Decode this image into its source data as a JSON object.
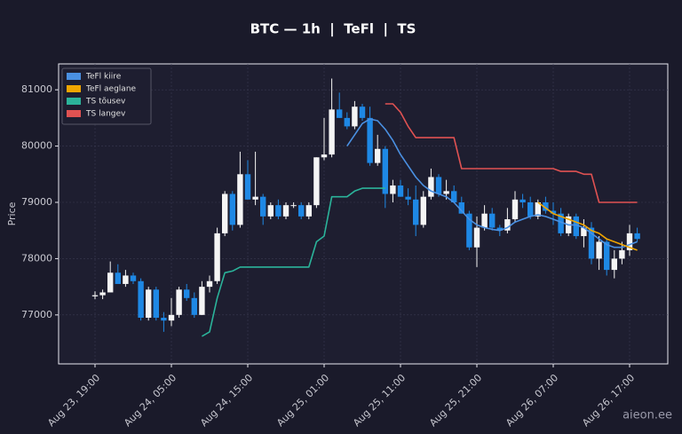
{
  "chart_data": {
    "type": "candlestick",
    "title": "BTC — 1h  |  TeFl  |  TS",
    "y_label": "Price",
    "watermark": "aieon.ee",
    "x": [
      "Aug 23, 19:00",
      null,
      null,
      null,
      null,
      null,
      null,
      null,
      null,
      null,
      "Aug 24, 05:00",
      null,
      null,
      null,
      null,
      null,
      null,
      null,
      null,
      null,
      "Aug 24, 15:00",
      null,
      null,
      null,
      null,
      null,
      null,
      null,
      null,
      null,
      "Aug 25, 01:00",
      null,
      null,
      null,
      null,
      null,
      null,
      null,
      null,
      null,
      "Aug 25, 11:00",
      null,
      null,
      null,
      null,
      null,
      null,
      null,
      null,
      null,
      "Aug 25, 21:00",
      null,
      null,
      null,
      null,
      null,
      null,
      null,
      null,
      null,
      "Aug 26, 07:00",
      null,
      null,
      null,
      null,
      null,
      null,
      null,
      null,
      null,
      "Aug 26, 17:00",
      null
    ],
    "open": [
      77330,
      77350,
      77400,
      77750,
      77550,
      77700,
      77600,
      76950,
      77450,
      76950,
      76900,
      77000,
      77450,
      77300,
      77000,
      77500,
      77600,
      78450,
      79150,
      78600,
      79500,
      79050,
      79100,
      78750,
      78950,
      78750,
      78950,
      78950,
      78750,
      78950,
      79800,
      79850,
      80650,
      80500,
      80350,
      80700,
      80500,
      79700,
      79950,
      79150,
      79300,
      79100,
      79050,
      78600,
      79100,
      79450,
      79150,
      79200,
      79000,
      78800,
      78200,
      78550,
      78800,
      78550,
      78500,
      78700,
      79050,
      79000,
      78750,
      79000,
      78850,
      78800,
      78450,
      78750,
      78400,
      78550,
      78000,
      78300,
      77800,
      78000,
      78150,
      78450
    ],
    "high": [
      77420,
      77450,
      77950,
      77900,
      77800,
      77750,
      77650,
      77500,
      77500,
      77050,
      77300,
      77500,
      77550,
      77400,
      77600,
      77700,
      78550,
      79200,
      79200,
      79900,
      79750,
      79900,
      79150,
      79000,
      79050,
      79000,
      79000,
      79000,
      79000,
      79800,
      80500,
      81200,
      80950,
      80600,
      80800,
      80750,
      80700,
      80200,
      80000,
      79400,
      79400,
      79250,
      79300,
      79200,
      79600,
      79500,
      79400,
      79300,
      79100,
      78850,
      78750,
      78950,
      78900,
      78600,
      78900,
      79200,
      79150,
      79100,
      79050,
      79100,
      79000,
      78900,
      78800,
      78800,
      78700,
      78650,
      78400,
      78350,
      78150,
      78300,
      78600,
      78550
    ],
    "low": [
      77280,
      77280,
      77400,
      77550,
      77500,
      77550,
      76900,
      76900,
      76900,
      76700,
      76800,
      76950,
      77250,
      76950,
      77000,
      77400,
      77550,
      78400,
      78500,
      78550,
      79050,
      78950,
      78600,
      78700,
      78700,
      78700,
      78900,
      78700,
      78700,
      78900,
      79750,
      79800,
      80500,
      80300,
      80300,
      80450,
      79650,
      79650,
      78900,
      79000,
      79100,
      78950,
      78400,
      78550,
      79050,
      79100,
      79050,
      79000,
      78800,
      78150,
      77850,
      78500,
      78500,
      78400,
      78450,
      78650,
      78900,
      78700,
      78700,
      78800,
      78600,
      78400,
      78400,
      78350,
      78200,
      77900,
      77800,
      77700,
      77650,
      77900,
      78050,
      78300
    ],
    "close": [
      77350,
      77400,
      77750,
      77550,
      77700,
      77600,
      76950,
      77450,
      76950,
      76900,
      77000,
      77450,
      77300,
      77000,
      77500,
      77600,
      78450,
      79150,
      78600,
      79500,
      79050,
      79100,
      78750,
      78950,
      78750,
      78950,
      78950,
      78750,
      78950,
      79800,
      79850,
      80650,
      80500,
      80350,
      80700,
      80500,
      79700,
      79950,
      79150,
      79300,
      79100,
      79050,
      78600,
      79100,
      79450,
      79150,
      79200,
      79000,
      78800,
      78200,
      78550,
      78800,
      78550,
      78500,
      78700,
      79050,
      79000,
      78750,
      79000,
      78850,
      78800,
      78450,
      78750,
      78400,
      78550,
      78000,
      78300,
      77800,
      78000,
      78150,
      78450,
      78350
    ],
    "up_color": "#f5f5f5",
    "down_color": "#1e88e5",
    "series": [
      {
        "name": "TeFl kiire",
        "color": "#4a90e2",
        "values": [
          null,
          null,
          null,
          null,
          null,
          null,
          null,
          null,
          null,
          null,
          null,
          null,
          null,
          null,
          null,
          null,
          null,
          null,
          null,
          null,
          null,
          null,
          null,
          null,
          null,
          null,
          null,
          null,
          null,
          null,
          null,
          null,
          null,
          80000,
          80200,
          80400,
          80480,
          80450,
          80300,
          80100,
          79850,
          79650,
          79450,
          79300,
          79200,
          79150,
          79100,
          79000,
          78850,
          78700,
          78600,
          78550,
          78520,
          78500,
          78550,
          78650,
          78700,
          78750,
          78780,
          78750,
          78700,
          78650,
          78600,
          78600,
          78550,
          78450,
          78350,
          78250,
          78200,
          78200,
          78250,
          78300
        ]
      },
      {
        "name": "TeFl aeglane",
        "color": "#f0a500",
        "values": [
          null,
          null,
          null,
          null,
          null,
          null,
          null,
          null,
          null,
          null,
          null,
          null,
          null,
          null,
          null,
          null,
          null,
          null,
          null,
          null,
          null,
          null,
          null,
          null,
          null,
          null,
          null,
          null,
          null,
          null,
          null,
          null,
          null,
          null,
          null,
          null,
          null,
          null,
          null,
          null,
          null,
          null,
          null,
          null,
          null,
          null,
          null,
          null,
          null,
          null,
          null,
          null,
          null,
          null,
          null,
          null,
          null,
          null,
          79000,
          78900,
          78800,
          78750,
          78700,
          78650,
          78600,
          78500,
          78450,
          78350,
          78300,
          78250,
          78200,
          78150
        ]
      },
      {
        "name": "TS tõusev",
        "color": "#2bb39a",
        "values": [
          null,
          null,
          null,
          null,
          null,
          null,
          null,
          null,
          null,
          null,
          null,
          null,
          null,
          null,
          76620,
          76700,
          77300,
          77750,
          77780,
          77850,
          77850,
          77850,
          77850,
          77850,
          77850,
          77850,
          77850,
          77850,
          77850,
          78300,
          78400,
          79100,
          79100,
          79100,
          79200,
          79250,
          79250,
          79250,
          79250,
          null,
          null,
          null,
          null,
          null,
          null,
          null,
          null,
          null,
          null,
          null,
          null,
          null,
          null,
          null,
          null,
          null,
          null,
          null,
          null,
          null,
          null,
          null,
          null,
          null,
          null,
          null,
          null,
          null,
          null,
          null,
          null,
          null
        ]
      },
      {
        "name": "TS langev",
        "color": "#e05252",
        "values": [
          null,
          null,
          null,
          null,
          null,
          null,
          null,
          null,
          null,
          null,
          null,
          null,
          null,
          null,
          null,
          null,
          null,
          null,
          null,
          null,
          null,
          null,
          null,
          null,
          null,
          null,
          null,
          null,
          null,
          null,
          null,
          null,
          null,
          null,
          null,
          null,
          null,
          null,
          80750,
          80750,
          80600,
          80350,
          80150,
          80150,
          80150,
          80150,
          80150,
          80150,
          79600,
          79600,
          79600,
          79600,
          79600,
          79600,
          79600,
          79600,
          79600,
          79600,
          79600,
          79600,
          79600,
          79550,
          79550,
          79550,
          79500,
          79500,
          79000,
          79000,
          79000,
          79000,
          79000,
          79000
        ]
      }
    ],
    "ylim": [
      76130,
      81460
    ],
    "yticks": [
      77000,
      78000,
      79000,
      80000,
      81000
    ],
    "grid": true,
    "legend": "upper left"
  }
}
